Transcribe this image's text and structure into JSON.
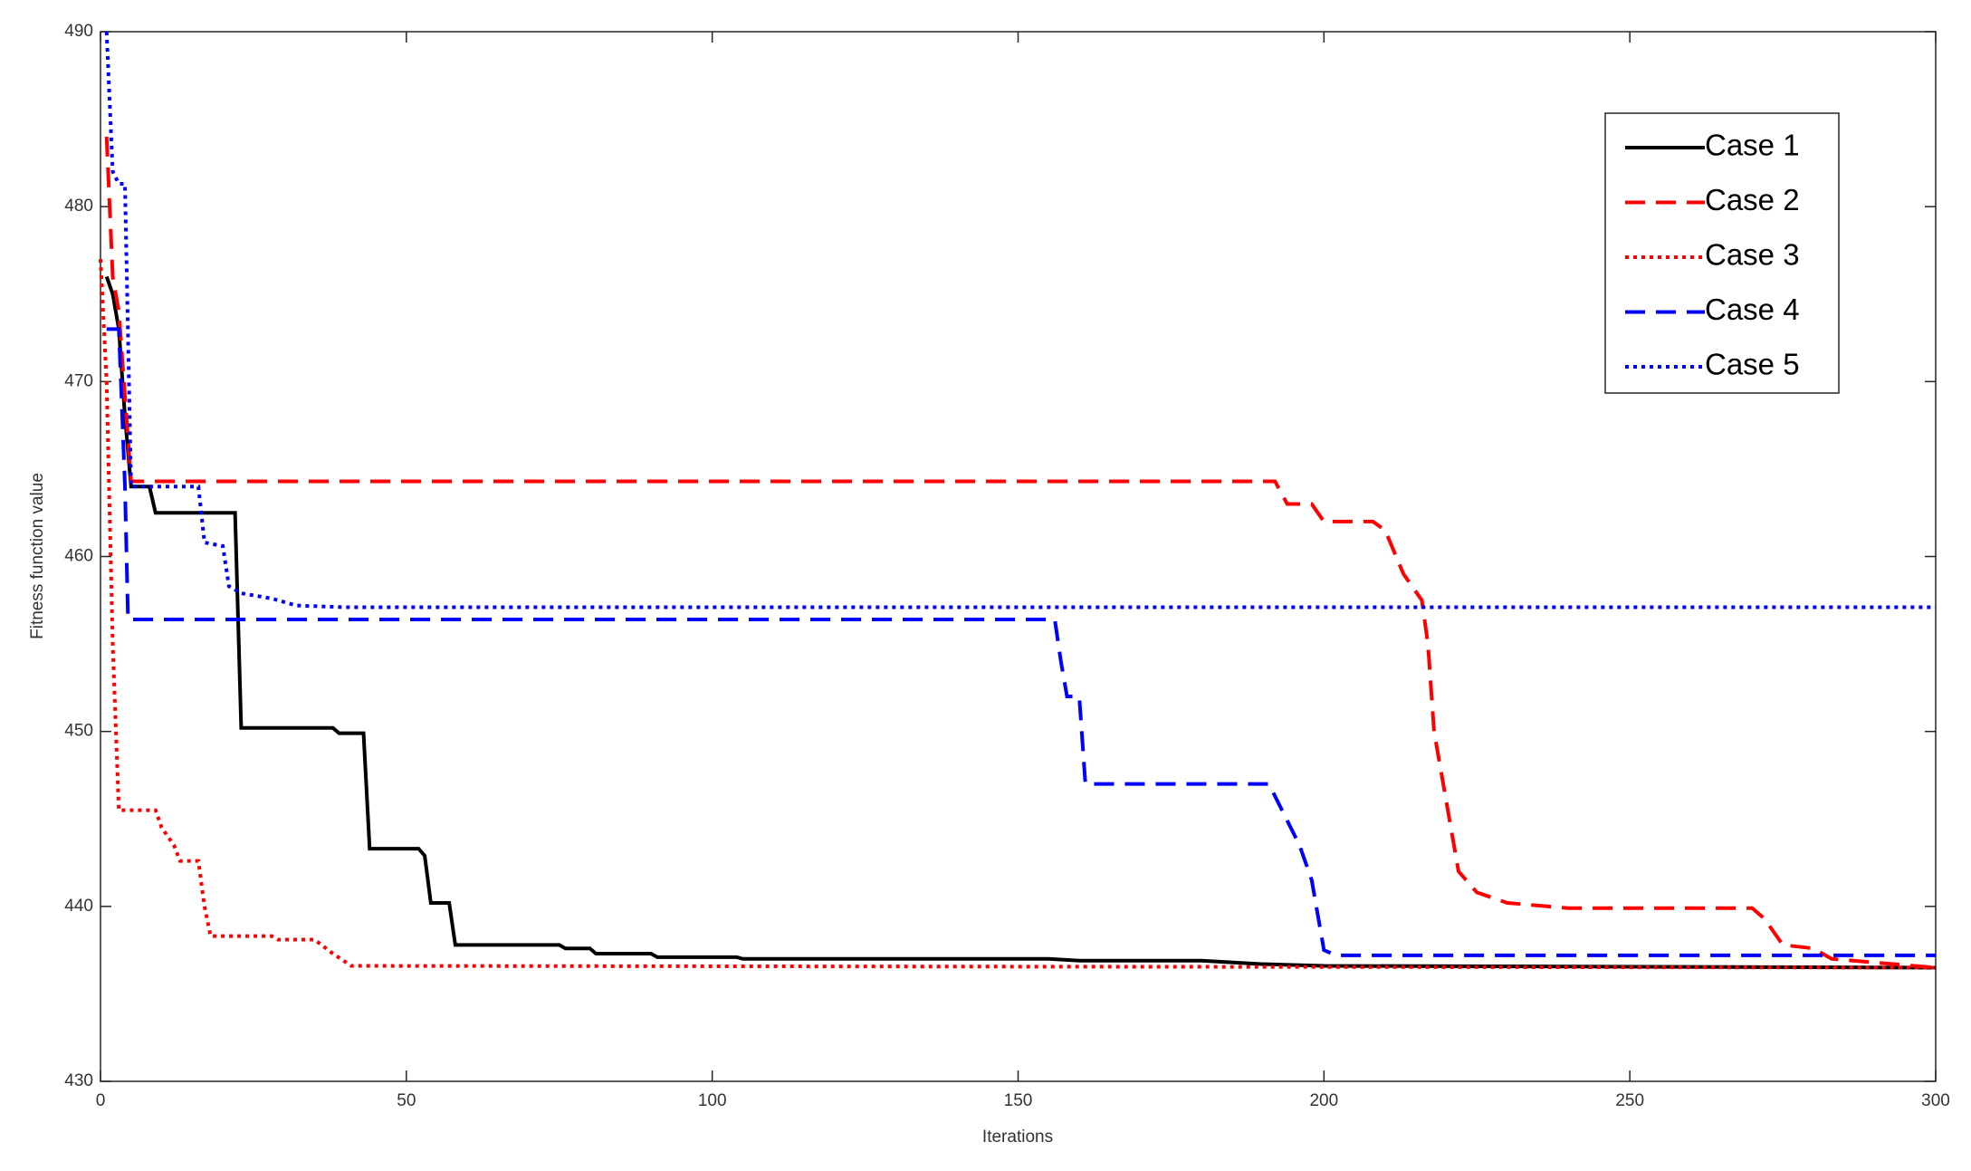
{
  "chart_data": {
    "type": "line",
    "xlabel": "Iterations",
    "ylabel": "Fitness function value",
    "xlim": [
      0,
      300
    ],
    "ylim": [
      430,
      490
    ],
    "xticks": [
      0,
      50,
      100,
      150,
      200,
      250,
      300
    ],
    "yticks": [
      430,
      440,
      450,
      460,
      470,
      480,
      490
    ],
    "grid": false,
    "legend": "upper right",
    "series": [
      {
        "name": "Case 1",
        "color": "#000000",
        "style": "solid",
        "x": [
          1,
          2,
          3,
          4,
          5,
          8,
          9,
          22,
          23,
          38,
          39,
          43,
          44,
          52,
          53,
          54,
          57,
          58,
          75,
          76,
          80,
          81,
          90,
          91,
          104,
          105,
          155,
          160,
          180,
          190,
          200,
          300
        ],
        "values": [
          476,
          475,
          473,
          468,
          464,
          464,
          462.5,
          462.5,
          450.2,
          450.2,
          449.9,
          449.9,
          443.3,
          443.3,
          442.9,
          440.2,
          440.2,
          437.8,
          437.8,
          437.6,
          437.6,
          437.3,
          437.3,
          437.1,
          437.1,
          437.0,
          437.0,
          436.9,
          436.9,
          436.7,
          436.6,
          436.5
        ]
      },
      {
        "name": "Case 2",
        "color": "#ff0000",
        "style": "dashed",
        "x": [
          1,
          2,
          3,
          5,
          192,
          194,
          198,
          200,
          208,
          210,
          213,
          216,
          217,
          218,
          220,
          222,
          225,
          230,
          240,
          270,
          272,
          275,
          280,
          283,
          300
        ],
        "values": [
          484,
          476,
          474,
          464.3,
          464.3,
          463,
          463,
          462,
          462,
          461.5,
          459,
          457.5,
          455,
          450,
          446,
          442,
          440.8,
          440.2,
          439.9,
          439.9,
          439.3,
          437.8,
          437.6,
          437,
          436.5
        ]
      },
      {
        "name": "Case 3",
        "color": "#ff0000",
        "style": "dotted",
        "x": [
          0,
          1,
          2,
          3,
          9,
          10,
          12,
          13,
          16,
          17,
          18,
          28,
          29,
          35,
          38,
          41,
          300
        ],
        "values": [
          477,
          470,
          455,
          445.5,
          445.5,
          444.5,
          443.5,
          442.6,
          442.6,
          440,
          438.3,
          438.3,
          438.1,
          438.1,
          437.3,
          436.6,
          436.5
        ]
      },
      {
        "name": "Case 4",
        "color": "#0000ff",
        "style": "dashed",
        "x": [
          1,
          3,
          4,
          4.5,
          156,
          157,
          158,
          160,
          161,
          191,
          193,
          196,
          198,
          200,
          202,
          300
        ],
        "values": [
          473,
          473,
          464,
          456.4,
          456.4,
          454,
          452,
          452,
          447,
          447,
          445.6,
          443.5,
          441.5,
          437.5,
          437.2,
          437.2
        ]
      },
      {
        "name": "Case 5",
        "color": "#0000ff",
        "style": "dotted",
        "x": [
          1,
          2,
          3,
          4,
          5,
          16,
          17,
          20,
          21,
          23,
          28,
          32,
          40,
          300
        ],
        "values": [
          490,
          482,
          481.3,
          481.3,
          464,
          464,
          460.8,
          460.6,
          458.3,
          457.9,
          457.6,
          457.2,
          457.1,
          457.1
        ]
      }
    ]
  }
}
